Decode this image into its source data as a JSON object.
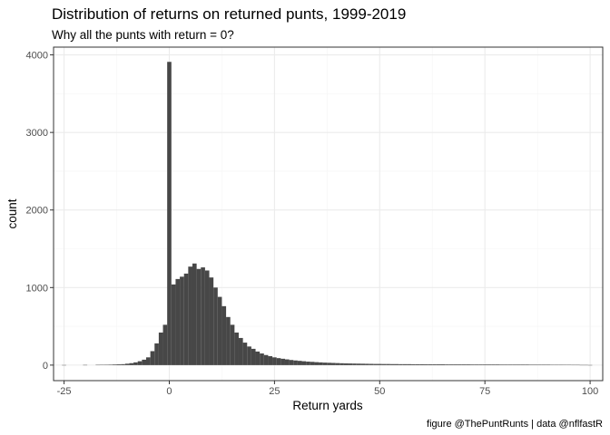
{
  "chart_data": {
    "type": "bar",
    "title": "Distribution of returns on returned punts, 1999-2019",
    "subtitle": "Why all the punts with return = 0?",
    "caption": "figure @ThePuntRunts | data @nflfastR",
    "xlabel": "Return yards",
    "ylabel": "count",
    "xlim": [
      -27.5,
      103
    ],
    "ylim": [
      -200,
      4100
    ],
    "x_ticks": [
      -25,
      0,
      25,
      50,
      75,
      100
    ],
    "x_tick_labels": [
      "-25",
      "0",
      "25",
      "50",
      "75",
      "100"
    ],
    "y_ticks": [
      0,
      1000,
      2000,
      3000,
      4000
    ],
    "y_tick_labels": [
      "0",
      "1000",
      "2000",
      "3000",
      "4000"
    ],
    "grid": true,
    "bin_width": 1,
    "bins": [
      {
        "x": -25,
        "count": 1
      },
      {
        "x": -20,
        "count": 2
      },
      {
        "x": -17,
        "count": 3
      },
      {
        "x": -16,
        "count": 4
      },
      {
        "x": -15,
        "count": 5
      },
      {
        "x": -14,
        "count": 6
      },
      {
        "x": -13,
        "count": 8
      },
      {
        "x": -12,
        "count": 10
      },
      {
        "x": -11,
        "count": 12
      },
      {
        "x": -10,
        "count": 18
      },
      {
        "x": -9,
        "count": 25
      },
      {
        "x": -8,
        "count": 35
      },
      {
        "x": -7,
        "count": 50
      },
      {
        "x": -6,
        "count": 70
      },
      {
        "x": -5,
        "count": 100
      },
      {
        "x": -4,
        "count": 180
      },
      {
        "x": -3,
        "count": 280
      },
      {
        "x": -2,
        "count": 420
      },
      {
        "x": -1,
        "count": 520
      },
      {
        "x": 0,
        "count": 3910
      },
      {
        "x": 1,
        "count": 1040
      },
      {
        "x": 2,
        "count": 1110
      },
      {
        "x": 3,
        "count": 1140
      },
      {
        "x": 4,
        "count": 1180
      },
      {
        "x": 5,
        "count": 1270
      },
      {
        "x": 6,
        "count": 1310
      },
      {
        "x": 7,
        "count": 1240
      },
      {
        "x": 8,
        "count": 1260
      },
      {
        "x": 9,
        "count": 1220
      },
      {
        "x": 10,
        "count": 1130
      },
      {
        "x": 11,
        "count": 1000
      },
      {
        "x": 12,
        "count": 880
      },
      {
        "x": 13,
        "count": 760
      },
      {
        "x": 14,
        "count": 620
      },
      {
        "x": 15,
        "count": 520
      },
      {
        "x": 16,
        "count": 420
      },
      {
        "x": 17,
        "count": 350
      },
      {
        "x": 18,
        "count": 290
      },
      {
        "x": 19,
        "count": 240
      },
      {
        "x": 20,
        "count": 210
      },
      {
        "x": 21,
        "count": 175
      },
      {
        "x": 22,
        "count": 150
      },
      {
        "x": 23,
        "count": 130
      },
      {
        "x": 24,
        "count": 115
      },
      {
        "x": 25,
        "count": 100
      },
      {
        "x": 26,
        "count": 90
      },
      {
        "x": 27,
        "count": 82
      },
      {
        "x": 28,
        "count": 74
      },
      {
        "x": 29,
        "count": 66
      },
      {
        "x": 30,
        "count": 60
      },
      {
        "x": 31,
        "count": 55
      },
      {
        "x": 32,
        "count": 50
      },
      {
        "x": 33,
        "count": 45
      },
      {
        "x": 34,
        "count": 42
      },
      {
        "x": 35,
        "count": 38
      },
      {
        "x": 36,
        "count": 35
      },
      {
        "x": 37,
        "count": 32
      },
      {
        "x": 38,
        "count": 30
      },
      {
        "x": 39,
        "count": 28
      },
      {
        "x": 40,
        "count": 26
      },
      {
        "x": 41,
        "count": 24
      },
      {
        "x": 42,
        "count": 22
      },
      {
        "x": 43,
        "count": 21
      },
      {
        "x": 44,
        "count": 20
      },
      {
        "x": 45,
        "count": 19
      },
      {
        "x": 46,
        "count": 18
      },
      {
        "x": 47,
        "count": 17
      },
      {
        "x": 48,
        "count": 16
      },
      {
        "x": 49,
        "count": 15
      },
      {
        "x": 50,
        "count": 15
      },
      {
        "x": 51,
        "count": 14
      },
      {
        "x": 52,
        "count": 14
      },
      {
        "x": 53,
        "count": 13
      },
      {
        "x": 54,
        "count": 13
      },
      {
        "x": 55,
        "count": 12
      },
      {
        "x": 56,
        "count": 12
      },
      {
        "x": 57,
        "count": 12
      },
      {
        "x": 58,
        "count": 11
      },
      {
        "x": 59,
        "count": 11
      },
      {
        "x": 60,
        "count": 11
      },
      {
        "x": 61,
        "count": 10
      },
      {
        "x": 62,
        "count": 10
      },
      {
        "x": 63,
        "count": 10
      },
      {
        "x": 64,
        "count": 10
      },
      {
        "x": 65,
        "count": 10
      },
      {
        "x": 66,
        "count": 9
      },
      {
        "x": 67,
        "count": 9
      },
      {
        "x": 68,
        "count": 9
      },
      {
        "x": 69,
        "count": 9
      },
      {
        "x": 70,
        "count": 9
      },
      {
        "x": 71,
        "count": 9
      },
      {
        "x": 72,
        "count": 8
      },
      {
        "x": 73,
        "count": 8
      },
      {
        "x": 74,
        "count": 8
      },
      {
        "x": 75,
        "count": 8
      },
      {
        "x": 76,
        "count": 8
      },
      {
        "x": 77,
        "count": 8
      },
      {
        "x": 78,
        "count": 8
      },
      {
        "x": 79,
        "count": 7
      },
      {
        "x": 80,
        "count": 7
      },
      {
        "x": 81,
        "count": 7
      },
      {
        "x": 82,
        "count": 7
      },
      {
        "x": 83,
        "count": 7
      },
      {
        "x": 84,
        "count": 7
      },
      {
        "x": 85,
        "count": 7
      },
      {
        "x": 86,
        "count": 6
      },
      {
        "x": 87,
        "count": 6
      },
      {
        "x": 88,
        "count": 6
      },
      {
        "x": 89,
        "count": 6
      },
      {
        "x": 90,
        "count": 6
      },
      {
        "x": 91,
        "count": 5
      },
      {
        "x": 92,
        "count": 5
      },
      {
        "x": 93,
        "count": 5
      },
      {
        "x": 94,
        "count": 4
      },
      {
        "x": 95,
        "count": 4
      },
      {
        "x": 96,
        "count": 3
      },
      {
        "x": 97,
        "count": 3
      },
      {
        "x": 98,
        "count": 2
      },
      {
        "x": 99,
        "count": 2
      },
      {
        "x": 100,
        "count": 1
      }
    ],
    "colors": {
      "bar": "#474747",
      "panel_border": "#333333",
      "grid_major": "#ebebeb",
      "grid_minor": "#f5f5f5",
      "tick_text": "#4d4d4d"
    }
  }
}
